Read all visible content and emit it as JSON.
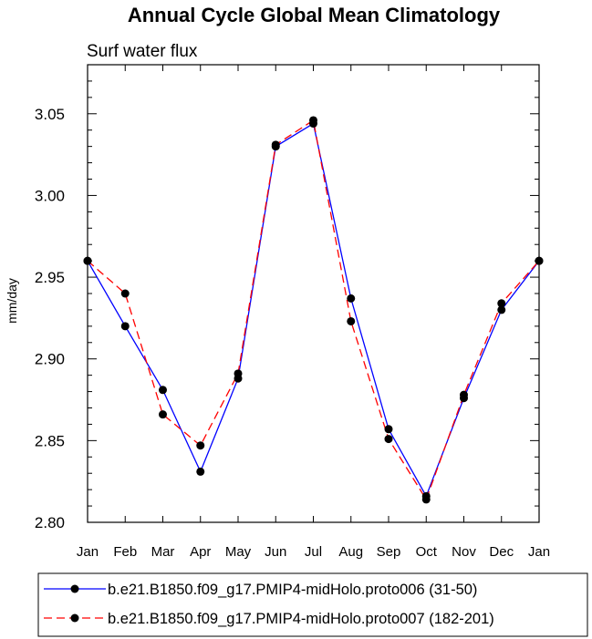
{
  "chart_data": {
    "type": "line",
    "title": "Annual Cycle Global Mean Climatology",
    "subtitle": "Surf water flux",
    "xlabel": "",
    "ylabel": "mm/day",
    "categories": [
      "Jan",
      "Feb",
      "Mar",
      "Apr",
      "May",
      "Jun",
      "Jul",
      "Aug",
      "Sep",
      "Oct",
      "Nov",
      "Dec",
      "Jan"
    ],
    "ylim": [
      2.8,
      3.08
    ],
    "yticks": [
      2.8,
      2.85,
      2.9,
      2.95,
      3.0,
      3.05
    ],
    "ytick_labels": [
      "2.80",
      "2.85",
      "2.90",
      "2.95",
      "3.00",
      "3.05"
    ],
    "grid": false,
    "legend_position": "bottom",
    "series": [
      {
        "name": "b.e21.B1850.f09_g17.PMIP4-midHolo.proto006 (31-50)",
        "color": "#0000ff",
        "line_style": "solid",
        "values": [
          2.96,
          2.92,
          2.881,
          2.831,
          2.888,
          3.03,
          3.044,
          2.937,
          2.857,
          2.816,
          2.876,
          2.93,
          2.96
        ]
      },
      {
        "name": "b.e21.B1850.f09_g17.PMIP4-midHolo.proto007 (182-201)",
        "color": "#ff0000",
        "line_style": "dashed",
        "values": [
          2.96,
          2.94,
          2.866,
          2.847,
          2.891,
          3.031,
          3.046,
          2.923,
          2.851,
          2.814,
          2.878,
          2.934,
          2.96
        ]
      }
    ]
  }
}
